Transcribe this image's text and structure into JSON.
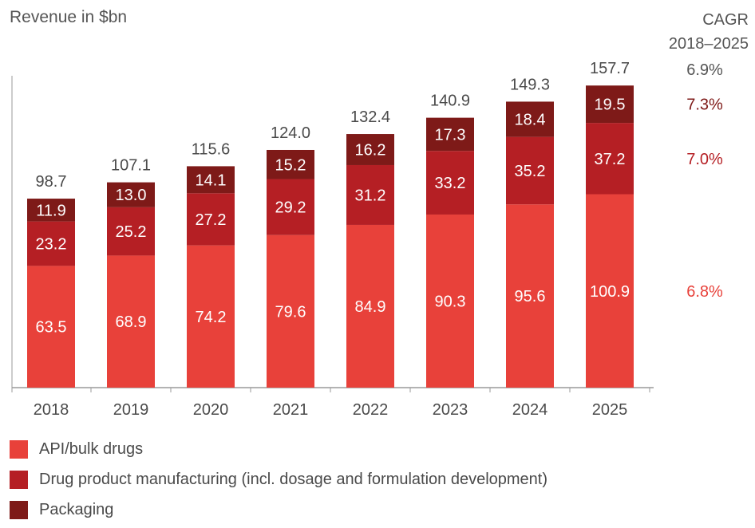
{
  "chart_data": {
    "type": "bar",
    "stacked": true,
    "ylabel": "Revenue in $bn",
    "categories": [
      "2018",
      "2019",
      "2020",
      "2021",
      "2022",
      "2023",
      "2024",
      "2025"
    ],
    "series": [
      {
        "name": "API/bulk drugs",
        "color": "#e8413a",
        "values": [
          63.5,
          68.9,
          74.2,
          79.6,
          84.9,
          90.3,
          95.6,
          100.9
        ],
        "cagr": "6.8%"
      },
      {
        "name": "Drug product manufacturing (incl. dosage and formulation development)",
        "color": "#b51f24",
        "values": [
          23.2,
          25.2,
          27.2,
          29.2,
          31.2,
          33.2,
          35.2,
          37.2
        ],
        "cagr": "7.0%"
      },
      {
        "name": "Packaging",
        "color": "#7e1a18",
        "values": [
          11.9,
          13.0,
          14.1,
          15.2,
          16.2,
          17.3,
          18.4,
          19.5
        ],
        "cagr": "7.3%"
      }
    ],
    "totals": [
      98.7,
      107.1,
      115.6,
      124.0,
      132.4,
      140.9,
      149.3,
      157.7
    ],
    "cagr_header": [
      "CAGR",
      "2018–2025"
    ],
    "cagr_total": "6.9%",
    "legend_position": "bottom-left",
    "ylim": [
      0,
      162
    ],
    "grid": false
  }
}
